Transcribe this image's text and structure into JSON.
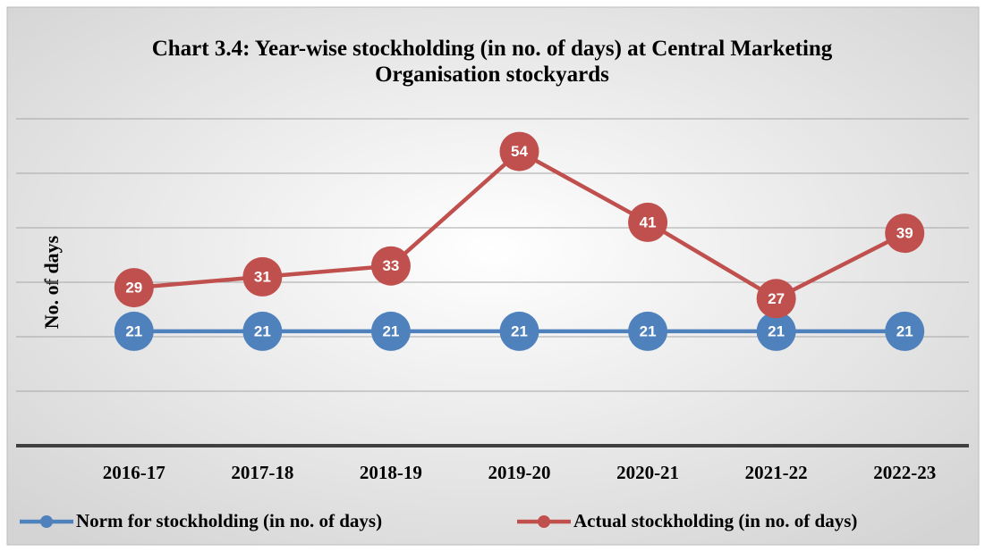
{
  "chart_data": {
    "type": "line",
    "title": "Chart 3.4: Year-wise stockholding (in no. of days) at Central Marketing Organisation stockyards",
    "y_label": "No. of days",
    "categories": [
      "2016-17",
      "2017-18",
      "2018-19",
      "2019-20",
      "2020-21",
      "2021-22",
      "2022-23"
    ],
    "series": [
      {
        "name": "Norm for stockholding (in no. of days)",
        "color": "#4f81bd",
        "values": [
          21,
          21,
          21,
          21,
          21,
          21,
          21
        ]
      },
      {
        "name": "Actual stockholding (in no. of days)",
        "color": "#c0504d",
        "values": [
          29,
          31,
          33,
          54,
          41,
          27,
          39
        ]
      }
    ],
    "ylim": [
      0,
      60
    ],
    "yticks": [
      0,
      10,
      20,
      30,
      40,
      50,
      60
    ],
    "grid": true,
    "legend": "bottom"
  }
}
